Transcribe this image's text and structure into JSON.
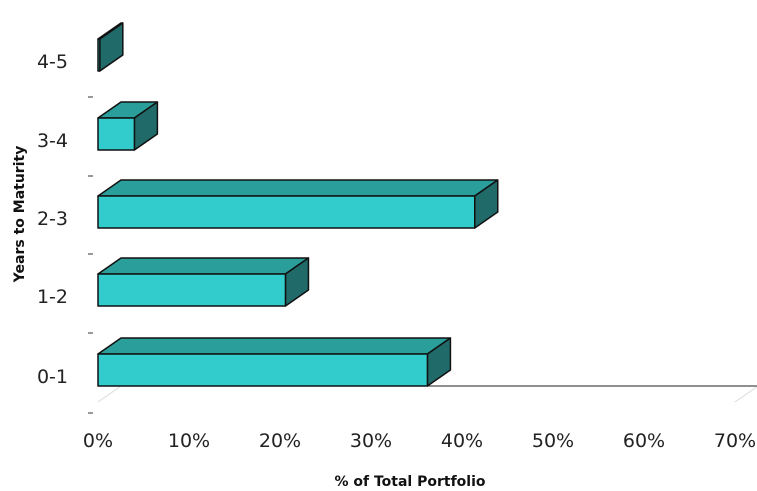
{
  "chart_data": {
    "type": "bar",
    "orientation": "horizontal",
    "style": "3d",
    "categories": [
      "0-1",
      "1-2",
      "2-3",
      "3-4",
      "4-5"
    ],
    "values": [
      36.2,
      20.6,
      41.4,
      4.0,
      0.2
    ],
    "xlabel": "% of Total Portfolio",
    "ylabel": "Years to Maturity",
    "xlim": [
      0,
      70
    ],
    "x_ticks": [
      "0%",
      "10%",
      "20%",
      "30%",
      "40%",
      "50%",
      "60%",
      "70%"
    ],
    "grid": false,
    "legend": "none",
    "colors": {
      "bar_front": "#33CCCC",
      "bar_top": "#2A9E9A",
      "bar_side": "#216A6A",
      "edge": "#111111"
    }
  }
}
